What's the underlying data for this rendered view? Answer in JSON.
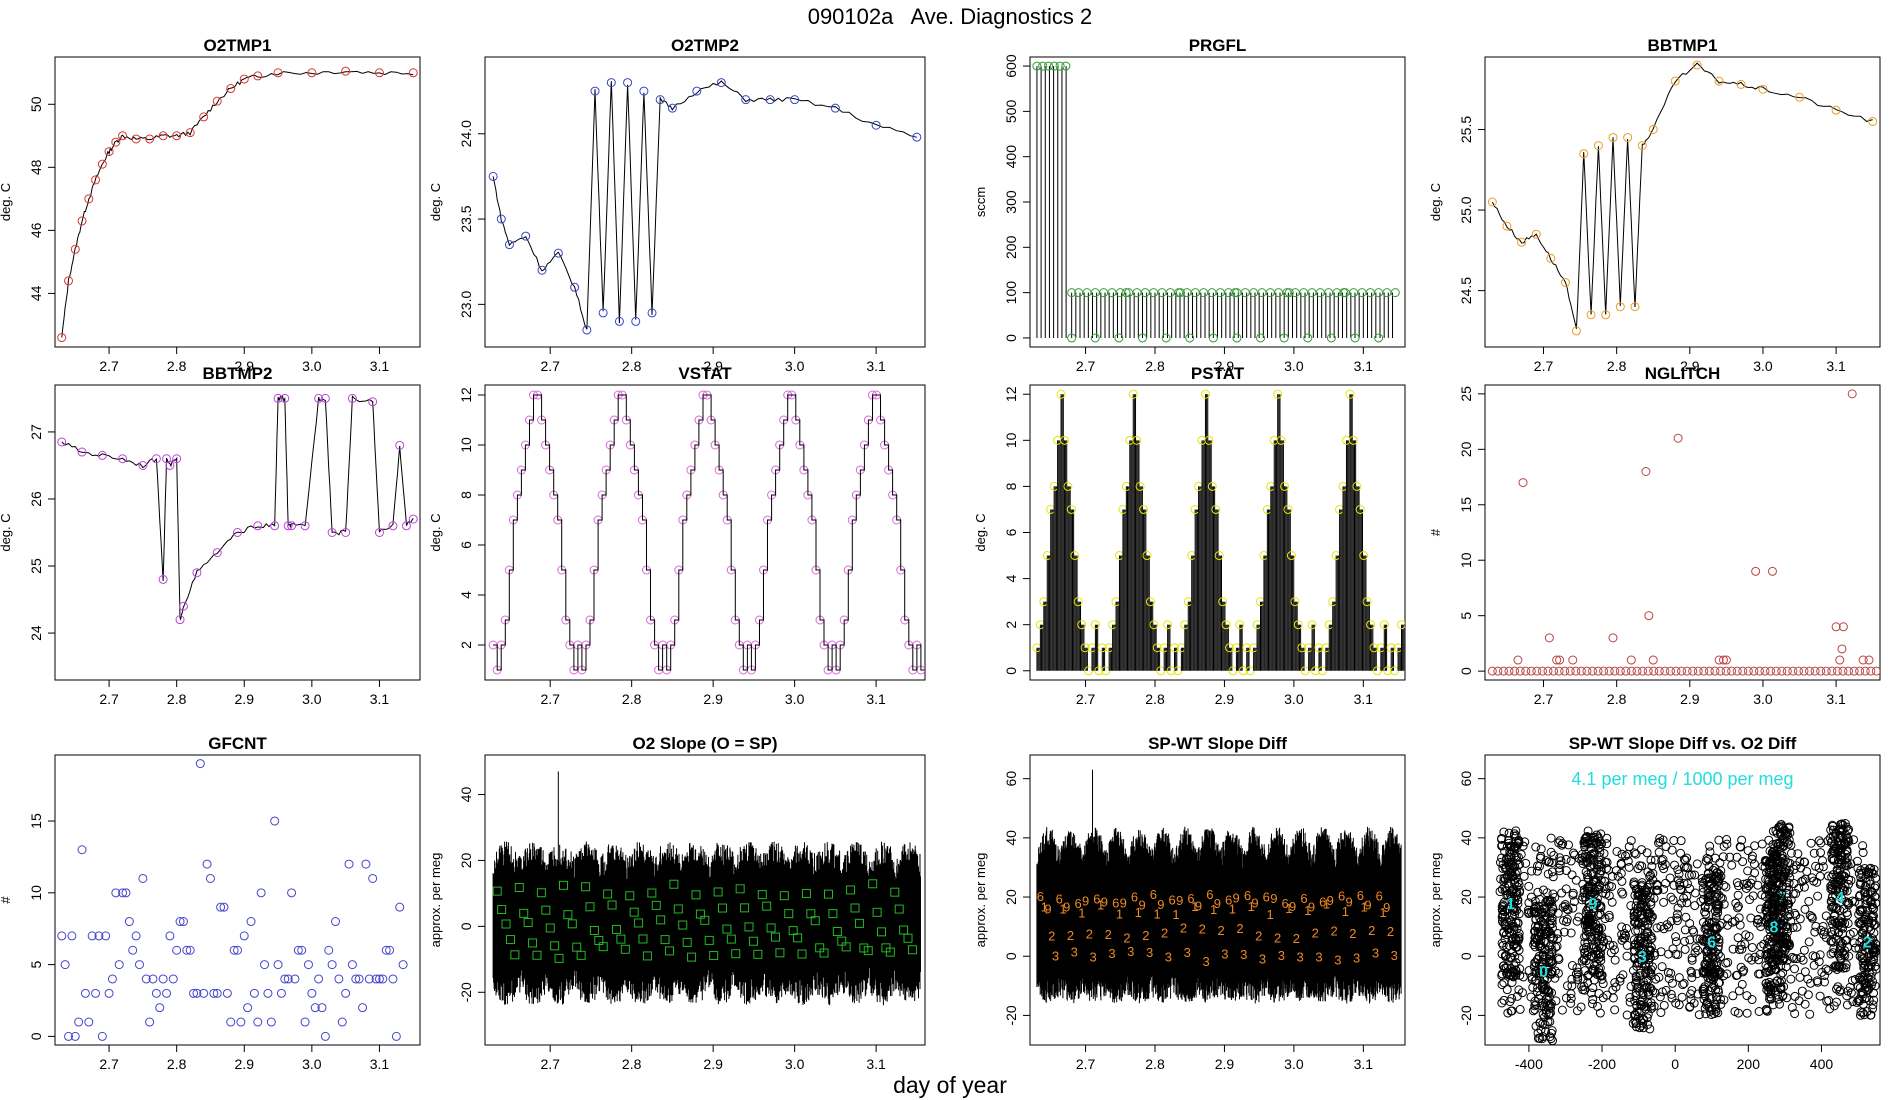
{
  "page": {
    "title": "090102a   Ave. Diagnostics 2",
    "xlabel": "day of year"
  },
  "chart_data": [
    {
      "id": "o2tmp1",
      "title": "O2TMP1",
      "ylabel": "deg. C",
      "type": "line",
      "xlim": [
        2.62,
        3.16
      ],
      "ylim": [
        42.3,
        51.5
      ],
      "xticks": [
        2.7,
        2.8,
        2.9,
        3.0,
        3.1
      ],
      "xtick_labels": [
        "2.7",
        "2.8",
        "2.9",
        "3.0",
        "3.1"
      ],
      "yticks": [
        44,
        46,
        48,
        50
      ],
      "ytick_labels": [
        "44",
        "46",
        "48",
        "50"
      ],
      "marker": "circle",
      "marker_color": "#dd3333",
      "x": [
        2.63,
        2.64,
        2.65,
        2.66,
        2.67,
        2.68,
        2.69,
        2.7,
        2.71,
        2.72,
        2.74,
        2.76,
        2.78,
        2.8,
        2.82,
        2.84,
        2.86,
        2.88,
        2.9,
        2.92,
        2.95,
        3.0,
        3.05,
        3.1,
        3.15
      ],
      "y": [
        42.6,
        44.4,
        45.4,
        46.3,
        47.0,
        47.6,
        48.1,
        48.5,
        48.8,
        49.0,
        48.9,
        48.9,
        49.0,
        49.0,
        49.1,
        49.6,
        50.1,
        50.5,
        50.8,
        50.9,
        51.0,
        51.0,
        51.05,
        51.0,
        51.0
      ]
    },
    {
      "id": "o2tmp2",
      "title": "O2TMP2",
      "ylabel": "deg. C",
      "type": "line",
      "xlim": [
        2.62,
        3.16
      ],
      "ylim": [
        22.75,
        24.45
      ],
      "xticks": [
        2.7,
        2.8,
        2.9,
        3.0,
        3.1
      ],
      "xtick_labels": [
        "2.7",
        "2.8",
        "2.9",
        "3.0",
        "3.1"
      ],
      "yticks": [
        23.0,
        23.5,
        24.0
      ],
      "ytick_labels": [
        "23.0",
        "23.5",
        "24.0"
      ],
      "marker": "circle",
      "marker_color": "#3344cc",
      "x": [
        2.63,
        2.64,
        2.65,
        2.67,
        2.69,
        2.71,
        2.73,
        2.745,
        2.755,
        2.765,
        2.775,
        2.785,
        2.795,
        2.805,
        2.815,
        2.825,
        2.835,
        2.85,
        2.88,
        2.91,
        2.94,
        2.97,
        3.0,
        3.05,
        3.1,
        3.15
      ],
      "y": [
        23.75,
        23.5,
        23.35,
        23.4,
        23.2,
        23.3,
        23.1,
        22.85,
        24.25,
        22.95,
        24.3,
        22.9,
        24.3,
        22.9,
        24.25,
        22.95,
        24.2,
        24.15,
        24.25,
        24.3,
        24.2,
        24.2,
        24.2,
        24.15,
        24.05,
        23.98
      ]
    },
    {
      "id": "prgfl",
      "title": "PRGFL",
      "ylabel": "sccm",
      "type": "spikes",
      "xlim": [
        2.62,
        3.16
      ],
      "ylim": [
        -20,
        620
      ],
      "xticks": [
        2.7,
        2.8,
        2.9,
        3.0,
        3.1
      ],
      "xtick_labels": [
        "2.7",
        "2.8",
        "2.9",
        "3.0",
        "3.1"
      ],
      "yticks": [
        0,
        100,
        200,
        300,
        400,
        500,
        600
      ],
      "ytick_labels": [
        "0",
        "100",
        "200",
        "300",
        "400",
        "500",
        "600"
      ],
      "marker": "circle",
      "marker_color": "#339933",
      "segments": [
        {
          "x0": 2.63,
          "x1": 2.68,
          "high": 600
        },
        {
          "x0": 2.68,
          "x1": 3.15,
          "high": 100
        }
      ],
      "low": 0
    },
    {
      "id": "bbtmp1",
      "title": "BBTMP1",
      "ylabel": "deg. C",
      "type": "line",
      "xlim": [
        2.62,
        3.16
      ],
      "ylim": [
        24.15,
        25.95
      ],
      "xticks": [
        2.7,
        2.8,
        2.9,
        3.0,
        3.1
      ],
      "xtick_labels": [
        "2.7",
        "2.8",
        "2.9",
        "3.0",
        "3.1"
      ],
      "yticks": [
        24.5,
        25.0,
        25.5
      ],
      "ytick_labels": [
        "24.5",
        "25.0",
        "25.5"
      ],
      "marker": "circle",
      "marker_color": "#e6a020",
      "x": [
        2.63,
        2.65,
        2.67,
        2.69,
        2.71,
        2.73,
        2.745,
        2.755,
        2.765,
        2.775,
        2.785,
        2.795,
        2.805,
        2.815,
        2.825,
        2.835,
        2.85,
        2.88,
        2.91,
        2.94,
        2.97,
        3.0,
        3.05,
        3.1,
        3.15
      ],
      "y": [
        25.05,
        24.9,
        24.8,
        24.85,
        24.7,
        24.55,
        24.25,
        25.35,
        24.35,
        25.4,
        24.35,
        25.45,
        24.4,
        25.45,
        24.4,
        25.4,
        25.5,
        25.8,
        25.9,
        25.8,
        25.78,
        25.75,
        25.7,
        25.62,
        25.55
      ]
    },
    {
      "id": "bbtmp2",
      "title": "BBTMP2",
      "ylabel": "deg. C",
      "type": "line",
      "xlim": [
        2.62,
        3.16
      ],
      "ylim": [
        23.3,
        27.7
      ],
      "xticks": [
        2.7,
        2.8,
        2.9,
        3.0,
        3.1
      ],
      "xtick_labels": [
        "2.7",
        "2.8",
        "2.9",
        "3.0",
        "3.1"
      ],
      "yticks": [
        24,
        25,
        26,
        27
      ],
      "ytick_labels": [
        "24",
        "25",
        "26",
        "27"
      ],
      "marker": "circle",
      "marker_color": "#bb44dd",
      "x": [
        2.63,
        2.66,
        2.69,
        2.72,
        2.75,
        2.77,
        2.78,
        2.785,
        2.79,
        2.8,
        2.805,
        2.81,
        2.83,
        2.86,
        2.89,
        2.92,
        2.945,
        2.95,
        2.96,
        2.965,
        2.97,
        2.99,
        3.01,
        3.02,
        3.03,
        3.05,
        3.06,
        3.09,
        3.1,
        3.12,
        3.13,
        3.14,
        3.15
      ],
      "y": [
        26.85,
        26.7,
        26.65,
        26.6,
        26.5,
        26.6,
        24.8,
        26.6,
        26.5,
        26.6,
        24.2,
        24.4,
        24.9,
        25.2,
        25.5,
        25.6,
        25.6,
        27.5,
        27.5,
        25.6,
        25.6,
        25.6,
        27.5,
        27.5,
        25.5,
        25.5,
        27.5,
        27.45,
        25.5,
        25.6,
        26.8,
        25.6,
        25.7
      ]
    },
    {
      "id": "vstat",
      "title": "VSTAT",
      "ylabel": "deg. C",
      "type": "step",
      "xlim": [
        2.62,
        3.16
      ],
      "ylim": [
        0.6,
        12.4
      ],
      "xticks": [
        2.7,
        2.8,
        2.9,
        3.0,
        3.1
      ],
      "xtick_labels": [
        "2.7",
        "2.8",
        "2.9",
        "3.0",
        "3.1"
      ],
      "yticks": [
        2,
        4,
        6,
        8,
        10,
        12
      ],
      "ytick_labels": [
        "2",
        "4",
        "6",
        "8",
        "10",
        "12"
      ],
      "marker": "circle",
      "marker_color": "#dd66dd",
      "cycle_start": 2.63,
      "cycle_period": 0.104,
      "levels": [
        2,
        1,
        2,
        3,
        5,
        7,
        8,
        9,
        10,
        11,
        12,
        12,
        11,
        10,
        9,
        8,
        7,
        5,
        3,
        2,
        1
      ]
    },
    {
      "id": "pstat",
      "title": "PSTAT",
      "ylabel": "deg. C",
      "type": "stepspikes",
      "xlim": [
        2.62,
        3.16
      ],
      "ylim": [
        -0.4,
        12.4
      ],
      "xticks": [
        2.7,
        2.8,
        2.9,
        3.0,
        3.1
      ],
      "xtick_labels": [
        "2.7",
        "2.8",
        "2.9",
        "3.0",
        "3.1"
      ],
      "yticks": [
        0,
        2,
        4,
        6,
        8,
        10,
        12
      ],
      "ytick_labels": [
        "0",
        "2",
        "4",
        "6",
        "8",
        "10",
        "12"
      ],
      "marker": "circle",
      "marker_color": "#e6e600",
      "cycle_start": 2.63,
      "cycle_period": 0.104,
      "levels": [
        1,
        2,
        3,
        5,
        7,
        8,
        10,
        12,
        10,
        8,
        7,
        5,
        3,
        2,
        1,
        0,
        1,
        2,
        0,
        1,
        0
      ]
    },
    {
      "id": "nglitch",
      "title": "NGLITCH",
      "ylabel": "#",
      "type": "scatter",
      "xlim": [
        2.62,
        3.16
      ],
      "ylim": [
        -0.8,
        25.8
      ],
      "xticks": [
        2.7,
        2.8,
        2.9,
        3.0,
        3.1
      ],
      "xtick_labels": [
        "2.7",
        "2.8",
        "2.9",
        "3.0",
        "3.1"
      ],
      "yticks": [
        0,
        5,
        10,
        15,
        20,
        25
      ],
      "ytick_labels": [
        "0",
        "5",
        "10",
        "15",
        "20",
        "25"
      ],
      "marker": "circle",
      "marker_color": "#bb4444",
      "points": [
        [
          2.672,
          17
        ],
        [
          2.84,
          18
        ],
        [
          2.884,
          21
        ],
        [
          2.708,
          3
        ],
        [
          2.795,
          3
        ],
        [
          2.844,
          5
        ],
        [
          2.99,
          9
        ],
        [
          3.013,
          9
        ],
        [
          3.122,
          25
        ],
        [
          2.665,
          1
        ],
        [
          2.718,
          1
        ],
        [
          2.722,
          1
        ],
        [
          2.74,
          1
        ],
        [
          2.82,
          1
        ],
        [
          2.85,
          1
        ],
        [
          2.94,
          1
        ],
        [
          2.946,
          1
        ],
        [
          2.95,
          1
        ],
        [
          3.105,
          1
        ],
        [
          3.1,
          4
        ],
        [
          3.11,
          4
        ],
        [
          3.137,
          1
        ],
        [
          3.145,
          1
        ],
        [
          3.108,
          2
        ]
      ],
      "baseline": {
        "value": 0,
        "x0": 2.63,
        "x1": 3.155,
        "n": 70
      }
    },
    {
      "id": "gfcnt",
      "title": "GFCNT",
      "ylabel": "#",
      "type": "scatter",
      "xlim": [
        2.62,
        3.16
      ],
      "ylim": [
        -0.6,
        19.6
      ],
      "xticks": [
        2.7,
        2.8,
        2.9,
        3.0,
        3.1
      ],
      "xtick_labels": [
        "2.7",
        "2.8",
        "2.9",
        "3.0",
        "3.1"
      ],
      "yticks": [
        0,
        5,
        10,
        15
      ],
      "ytick_labels": [
        "0",
        "5",
        "10",
        "15"
      ],
      "marker": "circle",
      "marker_color": "#4444cc",
      "points": [
        [
          2.63,
          7
        ],
        [
          2.635,
          5
        ],
        [
          2.64,
          0
        ],
        [
          2.645,
          7
        ],
        [
          2.65,
          0
        ],
        [
          2.655,
          1
        ],
        [
          2.66,
          13
        ],
        [
          2.665,
          3
        ],
        [
          2.67,
          1
        ],
        [
          2.675,
          7
        ],
        [
          2.68,
          3
        ],
        [
          2.685,
          7
        ],
        [
          2.69,
          0
        ],
        [
          2.695,
          7
        ],
        [
          2.7,
          3
        ],
        [
          2.705,
          4
        ],
        [
          2.71,
          10
        ],
        [
          2.715,
          5
        ],
        [
          2.72,
          10
        ],
        [
          2.725,
          10
        ],
        [
          2.73,
          8
        ],
        [
          2.735,
          6
        ],
        [
          2.74,
          7
        ],
        [
          2.745,
          5
        ],
        [
          2.75,
          11
        ],
        [
          2.755,
          4
        ],
        [
          2.76,
          1
        ],
        [
          2.765,
          4
        ],
        [
          2.77,
          3
        ],
        [
          2.775,
          2
        ],
        [
          2.78,
          4
        ],
        [
          2.785,
          3
        ],
        [
          2.79,
          7
        ],
        [
          2.795,
          4
        ],
        [
          2.8,
          6
        ],
        [
          2.805,
          8
        ],
        [
          2.81,
          8
        ],
        [
          2.815,
          6
        ],
        [
          2.82,
          6
        ],
        [
          2.825,
          3
        ],
        [
          2.83,
          3
        ],
        [
          2.835,
          19
        ],
        [
          2.84,
          3
        ],
        [
          2.845,
          12
        ],
        [
          2.85,
          11
        ],
        [
          2.855,
          3
        ],
        [
          2.86,
          3
        ],
        [
          2.865,
          9
        ],
        [
          2.87,
          9
        ],
        [
          2.875,
          3
        ],
        [
          2.88,
          1
        ],
        [
          2.885,
          6
        ],
        [
          2.89,
          6
        ],
        [
          2.895,
          1
        ],
        [
          2.9,
          7
        ],
        [
          2.905,
          2
        ],
        [
          2.91,
          8
        ],
        [
          2.915,
          3
        ],
        [
          2.92,
          1
        ],
        [
          2.925,
          10
        ],
        [
          2.93,
          5
        ],
        [
          2.935,
          3
        ],
        [
          2.94,
          1
        ],
        [
          2.945,
          15
        ],
        [
          2.95,
          5
        ],
        [
          2.955,
          3
        ],
        [
          2.96,
          4
        ],
        [
          2.965,
          4
        ],
        [
          2.97,
          10
        ],
        [
          2.975,
          4
        ],
        [
          2.98,
          6
        ],
        [
          2.985,
          6
        ],
        [
          2.99,
          1
        ],
        [
          2.995,
          5
        ],
        [
          3.0,
          3
        ],
        [
          3.005,
          2
        ],
        [
          3.01,
          4
        ],
        [
          3.015,
          2
        ],
        [
          3.02,
          0
        ],
        [
          3.025,
          6
        ],
        [
          3.03,
          5
        ],
        [
          3.035,
          8
        ],
        [
          3.04,
          4
        ],
        [
          3.045,
          1
        ],
        [
          3.05,
          3
        ],
        [
          3.055,
          12
        ],
        [
          3.06,
          5
        ],
        [
          3.065,
          4
        ],
        [
          3.07,
          4
        ],
        [
          3.075,
          2
        ],
        [
          3.08,
          12
        ],
        [
          3.085,
          4
        ],
        [
          3.09,
          11
        ],
        [
          3.095,
          4
        ],
        [
          3.1,
          4
        ],
        [
          3.105,
          4
        ],
        [
          3.11,
          6
        ],
        [
          3.115,
          6
        ],
        [
          3.12,
          4
        ],
        [
          3.125,
          0
        ],
        [
          3.13,
          9
        ],
        [
          3.135,
          5
        ]
      ]
    },
    {
      "id": "o2slope",
      "title": "O2 Slope (O = SP)",
      "ylabel": "approx. per meg",
      "type": "noise",
      "xlim": [
        2.62,
        3.16
      ],
      "ylim": [
        -36,
        52
      ],
      "xticks": [
        2.7,
        2.8,
        2.9,
        3.0,
        3.1
      ],
      "xtick_labels": [
        "2.7",
        "2.8",
        "2.9",
        "3.0",
        "3.1"
      ],
      "yticks": [
        -20,
        0,
        20,
        40
      ],
      "ytick_labels": [
        "-20",
        "0",
        "20",
        "40"
      ],
      "marker": "square",
      "marker_color": "#22bb22",
      "band": {
        "low": -20,
        "high": 22,
        "spike_x": 2.71,
        "spike_y": 47
      },
      "marker_levels": [
        11,
        5,
        0,
        -5,
        -8
      ]
    },
    {
      "id": "spwt",
      "title": "SP-WT Slope Diff",
      "ylabel": "approx. per meg",
      "type": "noise",
      "xlim": [
        2.62,
        3.16
      ],
      "ylim": [
        -30,
        68
      ],
      "xticks": [
        2.7,
        2.8,
        2.9,
        3.0,
        3.1
      ],
      "xtick_labels": [
        "2.7",
        "2.8",
        "2.9",
        "3.0",
        "3.1"
      ],
      "yticks": [
        -20,
        0,
        20,
        40,
        60
      ],
      "ytick_labels": [
        "-20",
        "0",
        "20",
        "40",
        "60"
      ],
      "marker": "digit",
      "marker_color": "#ee8822",
      "band": {
        "low": -12,
        "high": 40,
        "spike_x": 2.71,
        "spike_y": 63
      },
      "digit_labels": [
        "6",
        "1",
        "9",
        "2",
        "3"
      ],
      "digit_levels": [
        20,
        16,
        18,
        8,
        0
      ]
    },
    {
      "id": "spwt_vs_o2",
      "title": "SP-WT Slope Diff vs. O2 Diff",
      "ylabel": "approx. per meg",
      "type": "cloud",
      "xlim": [
        -520,
        560
      ],
      "ylim": [
        -30,
        68
      ],
      "xticks": [
        -400,
        -200,
        0,
        200,
        400
      ],
      "xtick_labels": [
        "-400",
        "-200",
        "0",
        "200",
        "400"
      ],
      "yticks": [
        -20,
        0,
        20,
        40,
        60
      ],
      "ytick_labels": [
        "-20",
        "0",
        "20",
        "40",
        "60"
      ],
      "marker": "circle",
      "marker_color": "#000000",
      "annotation": "4.1 per meg / 1000 per meg",
      "annotation_color": "#22dddd",
      "clusters": [
        {
          "x": -450,
          "y": 18,
          "label": "1"
        },
        {
          "x": -360,
          "y": -5,
          "label": "0"
        },
        {
          "x": -225,
          "y": 18,
          "label": "9"
        },
        {
          "x": -90,
          "y": 0,
          "label": "3"
        },
        {
          "x": 100,
          "y": 5,
          "label": "6"
        },
        {
          "x": 290,
          "y": 20,
          "label": "7"
        },
        {
          "x": 270,
          "y": 10,
          "label": "8"
        },
        {
          "x": 450,
          "y": 20,
          "label": "4"
        },
        {
          "x": 525,
          "y": 5,
          "label": "2"
        }
      ]
    }
  ]
}
